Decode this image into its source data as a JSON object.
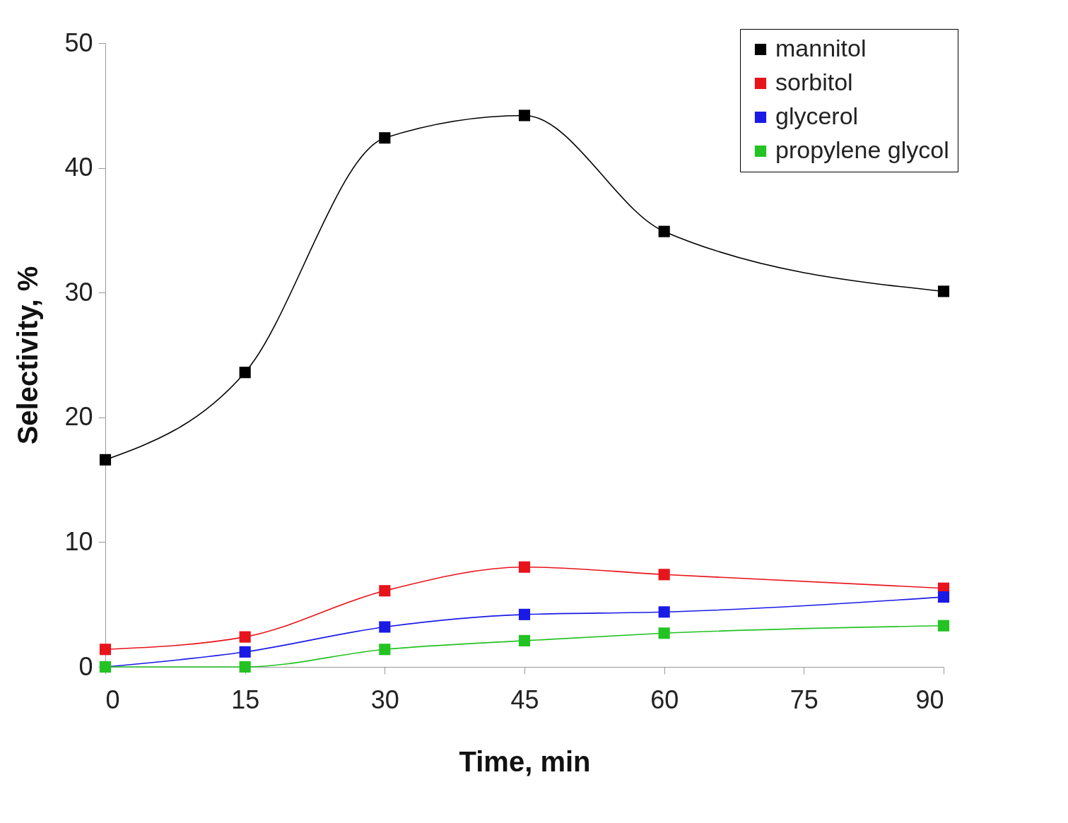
{
  "chart_data": {
    "type": "line",
    "xlabel": "Time, min",
    "ylabel": "Selectivity, %",
    "x": [
      0,
      15,
      30,
      45,
      60,
      90
    ],
    "series": [
      {
        "name": "mannitol",
        "color": "#000000",
        "values": [
          16.6,
          23.6,
          42.4,
          44.2,
          34.9,
          30.1
        ]
      },
      {
        "name": "sorbitol",
        "color": "#e8141b",
        "values": [
          1.4,
          2.4,
          6.1,
          8.0,
          7.4,
          6.3
        ]
      },
      {
        "name": "glycerol",
        "color": "#1a1ae6",
        "values": [
          0,
          1.2,
          3.2,
          4.2,
          4.4,
          5.6
        ]
      },
      {
        "name": "propylene glycol",
        "color": "#22c322",
        "values": [
          0,
          0,
          1.4,
          2.1,
          2.7,
          3.3
        ]
      }
    ],
    "xlim": [
      0,
      90
    ],
    "xticks": [
      0,
      15,
      30,
      45,
      60,
      75,
      90
    ],
    "ylim": [
      0,
      50
    ],
    "yticks": [
      0,
      10,
      20,
      30,
      40,
      50
    ],
    "grid": false,
    "legend": "top right",
    "marker": "square",
    "line_style": "solid"
  }
}
